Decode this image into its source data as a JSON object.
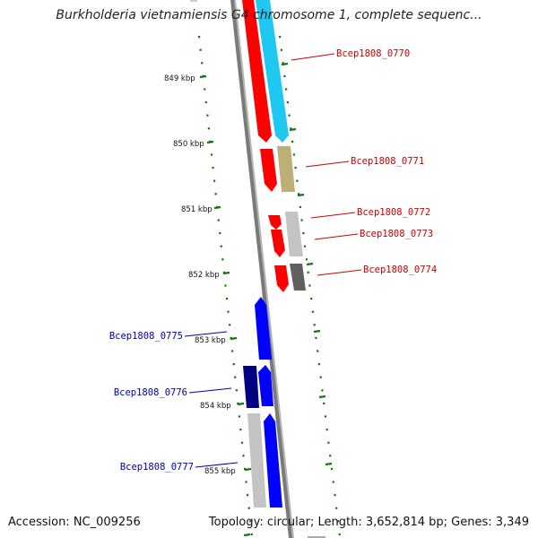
{
  "title": "Burkholderia vietnamiensis G4 chromosome 1, complete sequenc...",
  "accession_text": "Accession: NC_009256",
  "summary_text": "Topology: circular; Length: 3,652,814 bp; Genes: 3,349",
  "colors": {
    "red": "#ff0000",
    "cyan": "#1ec8f0",
    "khaki": "#bdb076",
    "lightgray": "#c4c4c4",
    "darkgray": "#606060",
    "blue": "#0000ff",
    "navy": "#000080",
    "tick": "#117711",
    "label_red": "#cc0000",
    "label_blue": "#0000aa"
  },
  "ticks": [
    {
      "label": "849 kbp"
    },
    {
      "label": "850 kbp"
    },
    {
      "label": "851 kbp"
    },
    {
      "label": "852 kbp"
    },
    {
      "label": "853 kbp"
    },
    {
      "label": "854 kbp"
    },
    {
      "label": "855 kbp"
    }
  ],
  "gene_labels": [
    {
      "text": "Bcep1808_0770"
    },
    {
      "text": "Bcep1808_0771"
    },
    {
      "text": "Bcep1808_0772"
    },
    {
      "text": "Bcep1808_0773"
    },
    {
      "text": "Bcep1808_0774"
    },
    {
      "text": "Bcep1808_0775"
    },
    {
      "text": "Bcep1808_0776"
    },
    {
      "text": "Bcep1808_0777"
    }
  ]
}
